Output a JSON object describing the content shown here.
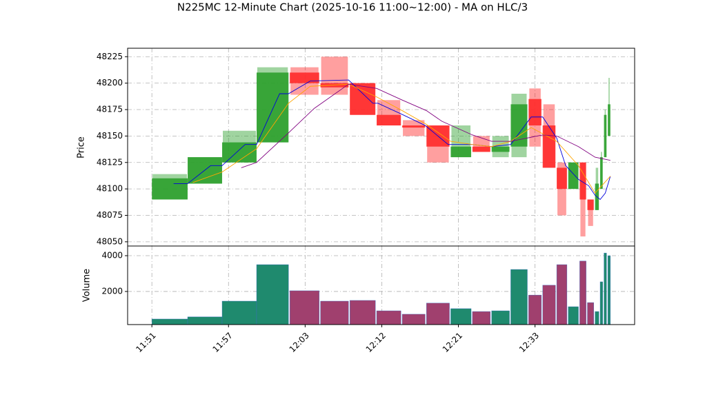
{
  "chart_data": {
    "type": "candlestick",
    "title": "N225MC 12-Minute Chart (2025-10-16 11:00~12:00) - MA on HLC/3",
    "ylabel": "Price",
    "y2label": "Volume",
    "xlim": [
      -1.9,
      37.8
    ],
    "xticks": [
      {
        "value": 0,
        "label": "11:51"
      },
      {
        "value": 6,
        "label": "11:57"
      },
      {
        "value": 12,
        "label": "12:03"
      },
      {
        "value": 18,
        "label": "12:12"
      },
      {
        "value": 24,
        "label": "12:21"
      },
      {
        "value": 30,
        "label": "12:33"
      }
    ],
    "ylim": [
      48046,
      48233
    ],
    "yticks": [
      48050,
      48075,
      48100,
      48125,
      48150,
      48175,
      48200,
      48225
    ],
    "y2lim": [
      150,
      4540
    ],
    "y2ticks": [
      2000,
      4000
    ],
    "grid": true,
    "up_color": "#2ca02c",
    "down_color": "#ff2a2a",
    "volume_up_color": "#1f8a6e",
    "volume_down_color": "#a0406e",
    "candles": {
      "x0": [
        0,
        2.8,
        5.5,
        8.2,
        10.8,
        13.2,
        15.5,
        17.6,
        19.6,
        21.5,
        23.4,
        25.1,
        26.6,
        28.1,
        29.5,
        30.6,
        31.7,
        32.6,
        33.5,
        34.1,
        34.7,
        35.1,
        35.4,
        35.7
      ],
      "x1": [
        2.8,
        5.5,
        8.2,
        10.7,
        13.1,
        15.4,
        17.5,
        19.5,
        21.4,
        23.3,
        25.0,
        26.5,
        28.0,
        29.4,
        30.5,
        31.6,
        32.5,
        33.4,
        34.0,
        34.6,
        35.0,
        35.3,
        35.6,
        35.9
      ],
      "open": [
        48090,
        48105,
        48125,
        48144,
        48210,
        48200,
        48200,
        48170,
        48160,
        48160,
        48130,
        48140,
        48135,
        48140,
        48185,
        48160,
        48120,
        48100,
        48125,
        48090,
        48080,
        48100,
        48130,
        48150
      ],
      "high": [
        48114,
        48130,
        48155,
        48215,
        48215,
        48225,
        48200,
        48184,
        48165,
        48160,
        48160,
        48150,
        48150,
        48190,
        48195,
        48180,
        48125,
        48125,
        48125,
        48090,
        48120,
        48135,
        48175,
        48205
      ],
      "low": [
        48090,
        48105,
        48125,
        48144,
        48189,
        48189,
        48170,
        48160,
        48150,
        48125,
        48130,
        48135,
        48130,
        48130,
        48140,
        48120,
        48075,
        48100,
        48055,
        48065,
        48080,
        48100,
        48130,
        48150
      ],
      "close": [
        48110,
        48130,
        48144,
        48210,
        48200,
        48196,
        48170,
        48160,
        48158,
        48140,
        48140,
        48135,
        48140,
        48180,
        48160,
        48120,
        48100,
        48125,
        48090,
        48080,
        48105,
        48130,
        48170,
        48180
      ],
      "volume": [
        460,
        580,
        1460,
        3500,
        2040,
        1460,
        1500,
        920,
        730,
        1350,
        1040,
        880,
        920,
        3230,
        1800,
        2350,
        3500,
        1150,
        3700,
        1380,
        880,
        2540,
        4150,
        4000
      ]
    },
    "series": [
      {
        "color": "#0000dd",
        "x": [
          1.7,
          2.8,
          4.6,
          5.5,
          7.3,
          8.2,
          10,
          10.7,
          12.4,
          15.4,
          17.3,
          17.7,
          19.5,
          21.4,
          23.2,
          25.1,
          26.6,
          28.1,
          29.7,
          30.6,
          31.7,
          32.4,
          33.4,
          34.2,
          34.7,
          35.1,
          35.5,
          35.9
        ],
        "values": [
          48105,
          48105,
          48122,
          48122,
          48142,
          48142,
          48190,
          48190,
          48202,
          48203,
          48181,
          48181,
          48171,
          48160,
          48142,
          48142,
          48140,
          48142,
          48168,
          48168,
          48148,
          48122,
          48109,
          48103,
          48094,
          48090,
          48096,
          48112
        ]
      },
      {
        "color": "#ffa500",
        "x": [
          3.2,
          5.5,
          8.2,
          10.7,
          12.4,
          15.4,
          17.6,
          19.6,
          21.5,
          23.4,
          25.1,
          26.6,
          28.1,
          29.7,
          31.7,
          33.4,
          34.7,
          35.9
        ],
        "values": [
          48106,
          48116,
          48138,
          48181,
          48197,
          48199,
          48187,
          48174,
          48161,
          48145,
          48142,
          48140,
          48145,
          48158,
          48145,
          48122,
          48096,
          48112
        ]
      },
      {
        "color": "#800080",
        "x": [
          7,
          8.2,
          10.7,
          12.7,
          15.4,
          17.6,
          19.6,
          21.5,
          22.7,
          25.1,
          26.6,
          28.1,
          30.6,
          31.7,
          33.4,
          34.7,
          35.9
        ],
        "values": [
          48120,
          48125,
          48153,
          48176,
          48199,
          48195,
          48184,
          48174,
          48164,
          48151,
          48145,
          48145,
          48151,
          48150,
          48140,
          48130,
          48127
        ]
      }
    ]
  }
}
